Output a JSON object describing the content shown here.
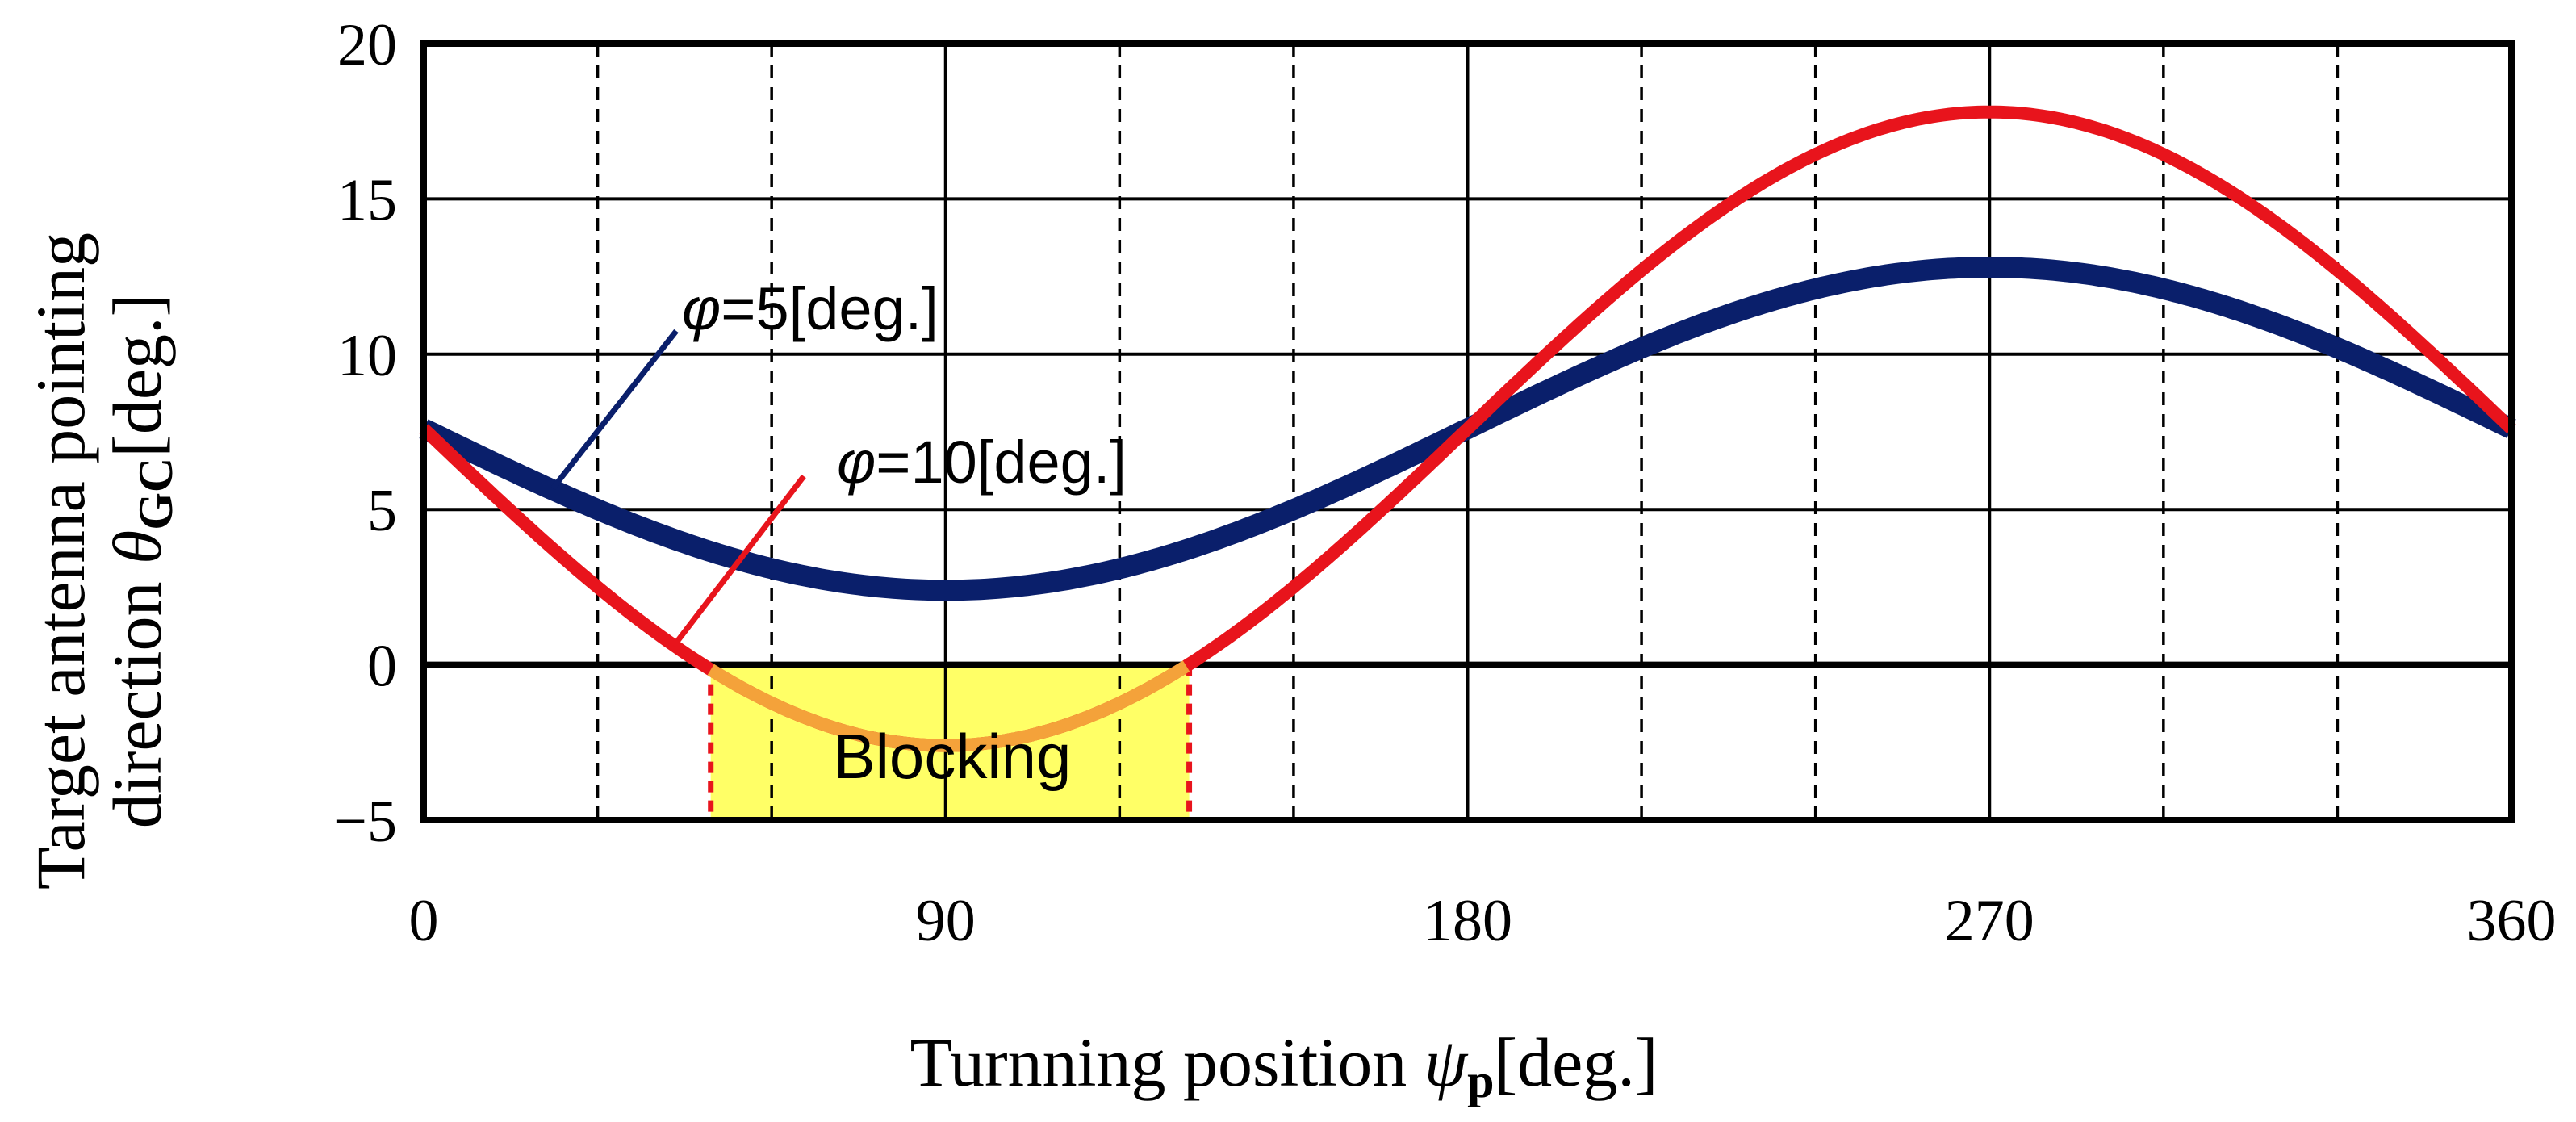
{
  "chart_data": {
    "type": "line",
    "title": "",
    "xlabel": {
      "text": "Turnning position ",
      "symbol": "ψ",
      "subscript": "p",
      "unit": "[deg.]"
    },
    "ylabel": {
      "line1": "Target antenna pointing",
      "line2_text": "direction ",
      "symbol": "θ",
      "subscript": "GC",
      "unit": "[deg.]"
    },
    "xlim": [
      0,
      360
    ],
    "ylim": [
      -5,
      20
    ],
    "x_ticks": [
      0,
      90,
      180,
      270,
      360
    ],
    "y_ticks": [
      20,
      15,
      10,
      5,
      0,
      -5
    ],
    "x_tick_labels": [
      "0",
      "90",
      "180",
      "270",
      "360"
    ],
    "y_tick_labels": [
      "20",
      "15",
      "10",
      "5",
      "0",
      "−5"
    ],
    "grid": {
      "solid_x": [
        90,
        180,
        270
      ],
      "dashed_x": [
        30,
        60,
        120,
        150,
        210,
        240,
        300,
        330
      ],
      "solid_y": [
        5,
        10,
        15
      ],
      "zero_line": 0
    },
    "series": [
      {
        "name": "φ=5[deg.]",
        "symbol": "φ",
        "label_text": "=5[deg.]",
        "color": "#0a1f6b",
        "mean": 7.6,
        "amplitude": 5.2,
        "x": [
          0,
          30,
          60,
          90,
          120,
          150,
          180,
          210,
          240,
          270,
          300,
          330,
          360
        ],
        "values": [
          7.6,
          5.0,
          3.1,
          2.4,
          3.1,
          5.0,
          7.6,
          10.2,
          12.1,
          12.8,
          12.1,
          10.2,
          7.6
        ]
      },
      {
        "name": "φ=10[deg.]",
        "symbol": "φ",
        "label_text": "=10[deg.]",
        "color": "#e8141c",
        "mean": 7.6,
        "amplitude": 10.2,
        "x": [
          0,
          30,
          60,
          90,
          120,
          150,
          180,
          210,
          240,
          270,
          300,
          330,
          360
        ],
        "values": [
          7.6,
          2.5,
          -1.2,
          -2.6,
          -1.2,
          2.5,
          7.6,
          12.7,
          16.4,
          17.8,
          16.4,
          12.7,
          7.6
        ]
      }
    ],
    "annotations": [
      {
        "text": "Blocking",
        "x_range": [
          49.5,
          132
        ],
        "y_range": [
          -5,
          0
        ],
        "fill": "#ffff66",
        "edge_color": "#e8141c"
      }
    ]
  }
}
